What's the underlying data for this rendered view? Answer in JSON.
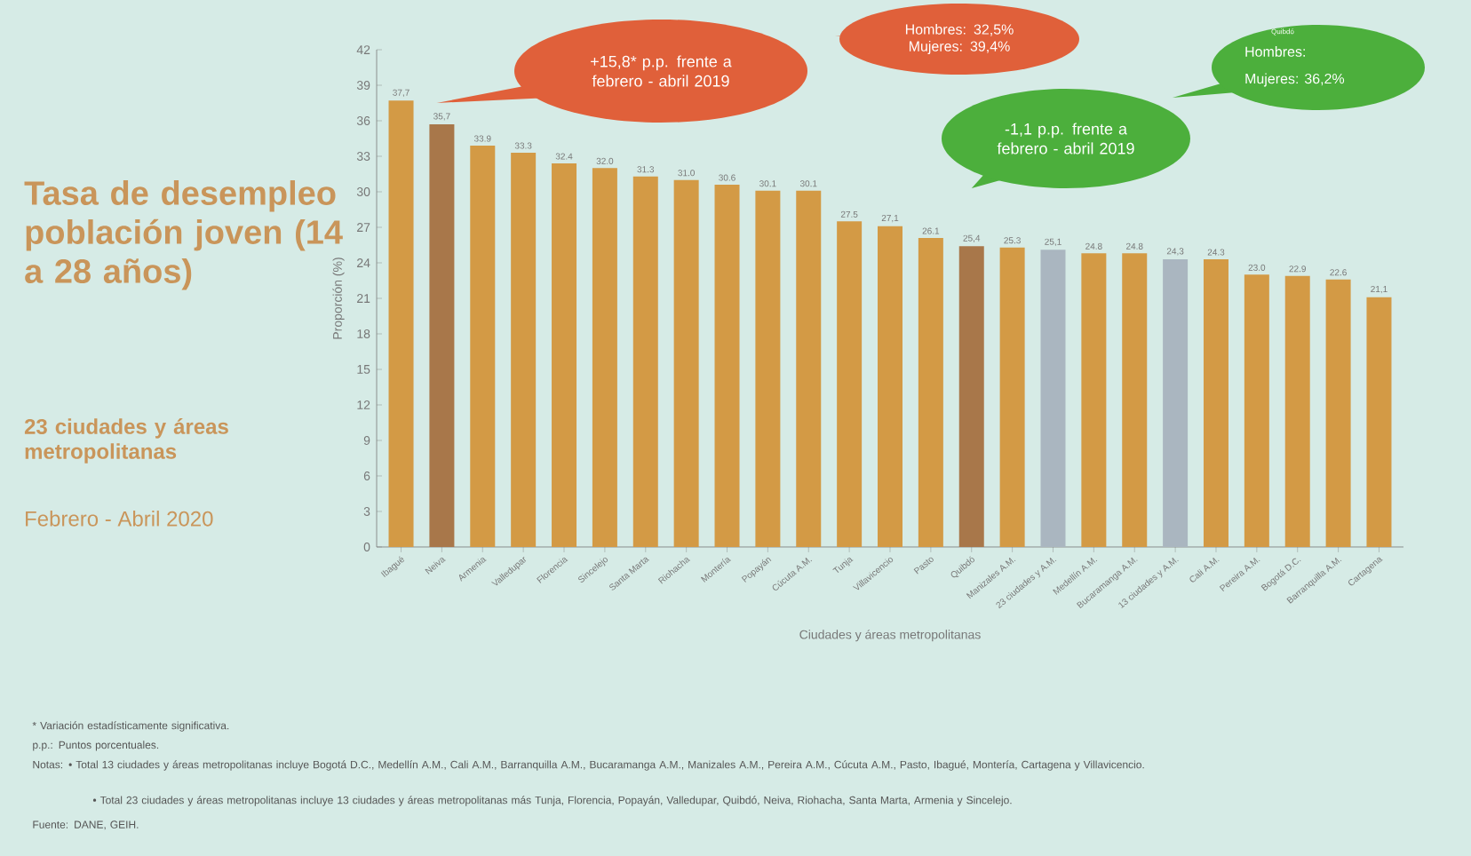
{
  "chart_data": {
    "type": "bar",
    "title": "Tasa de desempleo población joven (14 a 28 años)",
    "subtitle": "23 ciudades y áreas metropolitanas",
    "xlabel": "Ciudades y áreas metropolitanas",
    "ylabel": "Proporción (%)",
    "categories": [
      "Ibagué",
      "Neiva",
      "Armenia",
      "Valledupar",
      "Florencia",
      "Sincelejo",
      "Santa Marta",
      "Riohacha",
      "Montería",
      "Popayán",
      "Cúcuta A.M.",
      "Tunja",
      "Villavicencio",
      "Pasto",
      "Quibdó",
      "Manizales A.M.",
      "23 ciudades y A.M.",
      "Medellín A.M.",
      "Bucaramanga A.M.",
      "13 ciudades y A.M.",
      "Cali A.M.",
      "Pereira A.M.",
      "Bogotá D.C.",
      "Barranquilla A.M.",
      "Cartagena"
    ],
    "values": [
      37.7,
      35.7,
      33.9,
      33.3,
      32.4,
      32.0,
      31.3,
      31.0,
      30.6,
      30.1,
      30.1,
      27.5,
      27.1,
      26.1,
      25.4,
      25.3,
      25.1,
      24.8,
      24.8,
      24.3,
      24.3,
      23.0,
      22.9,
      22.6,
      21.1
    ],
    "value_labels": [
      "37,7",
      "35,7",
      "33.9",
      "33.3",
      "32.4",
      "32.0",
      "31.3",
      "31.0",
      "30.6",
      "30.1",
      "30.1",
      "27.5",
      "27,1",
      "26.1",
      "25,4",
      "25.3",
      "25,1",
      "24.8",
      "24.8",
      "24,3",
      "24.3",
      "23.0",
      "22.9",
      "22.6",
      "21,1"
    ],
    "colors": [
      "#d39a45",
      "#a8774a",
      "#d39a45",
      "#d39a45",
      "#d39a45",
      "#d39a45",
      "#d39a45",
      "#d39a45",
      "#d39a45",
      "#d39a45",
      "#d39a45",
      "#d39a45",
      "#d39a45",
      "#d39a45",
      "#a8774a",
      "#d39a45",
      "#aab6c0",
      "#d39a45",
      "#d39a45",
      "#aab6c0",
      "#d39a45",
      "#d39a45",
      "#d39a45",
      "#d39a45",
      "#d39a45"
    ],
    "ylim": [
      0,
      42
    ],
    "yticks": [
      0,
      3,
      6,
      9,
      12,
      15,
      18,
      21,
      24,
      27,
      30,
      33,
      36,
      39,
      42
    ],
    "annotations": [
      "+15,8* p.p. frente a febrero - abril 2019",
      "Hombres: 32,5% Mujeres: 39,4%",
      "-1,1 p.p. frente a febrero - abril 2019",
      "Quibdó",
      "Hombres:",
      "Mujeres: 36,2%",
      "Febrero - Abril 2020",
      "* Variación estadísticamente significativa.",
      "p.p.: Puntos porcentuales.",
      "Notas: • Total 13 ciudades y áreas metropolitanas incluye Bogotá D.C., Medellín A.M., Cali A.M., Barranquilla A.M., Bucaramanga A.M., Manizales A.M., Pereira A.M., Cúcuta A.M., Pasto, Ibagué, Montería, Cartagena y Villavicencio.",
      "• Total 23 ciudades y áreas metropolitanas incluye 13 ciudades y áreas metropolitanas más Tunja, Florencia, Popayán, Valledupar, Quibdó, Neiva, Riohacha, Santa Marta, Armenia y Sincelejo.",
      "Fuente: DANE, GEIH."
    ]
  }
}
